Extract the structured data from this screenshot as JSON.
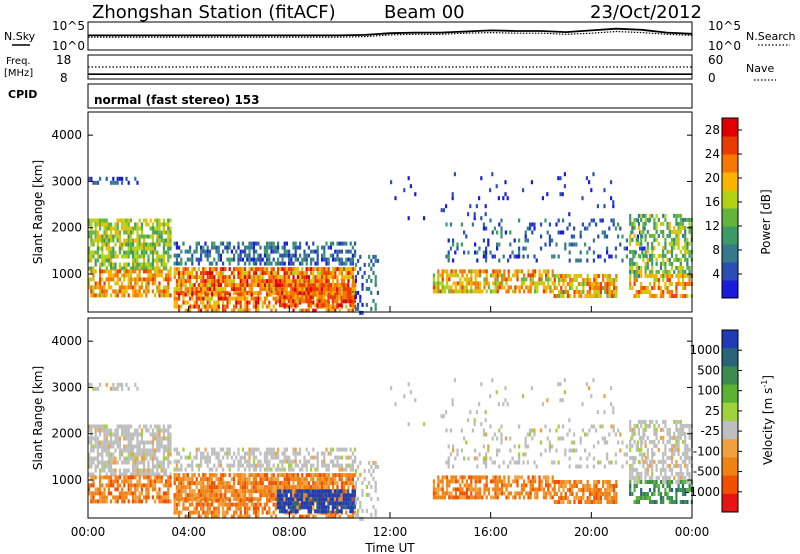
{
  "header": {
    "station": "Zhongshan Station (fitACF)",
    "beam": "Beam 00",
    "date": "23/Oct/2012"
  },
  "noise_panel": {
    "left_label": "N.Sky",
    "left_ticks": [
      "10^5",
      "10^0"
    ],
    "right_label": "N.Search",
    "right_ticks": [
      "10^5",
      "10^0"
    ]
  },
  "freq_panel": {
    "left_label_1": "Freq.",
    "left_label_2": "[MHz]",
    "left_ticks": [
      "18",
      "8"
    ],
    "right_label": "Nave",
    "right_ticks": [
      "60",
      "0"
    ]
  },
  "cpid": {
    "label": "CPID",
    "mode": "normal (fast stereo) 153"
  },
  "colors": {
    "power_scale": [
      "#1a1adc",
      "#2a4fb4",
      "#347a8c",
      "#3c9a64",
      "#64b43c",
      "#b4d214",
      "#fab400",
      "#f57800",
      "#eb3c00",
      "#e10000"
    ],
    "velocity_scale": [
      "#1e3cb4",
      "#2a6478",
      "#3c8c50",
      "#5ab432",
      "#a0d23c",
      "#bebebe",
      "#f0a03c",
      "#f08214",
      "#f05000",
      "#e61414"
    ]
  },
  "chart_data": [
    {
      "type": "line",
      "panel": "noise",
      "x_range_hours": [
        0,
        24
      ],
      "series": [
        {
          "x": [
            0,
            2,
            4,
            6,
            8,
            10,
            11,
            12,
            13,
            14,
            15,
            16,
            17,
            18,
            19,
            20,
            21,
            22,
            23,
            24
          ],
          "values": [
            2.6,
            2.6,
            2.6,
            2.6,
            2.6,
            2.6,
            2.7,
            3.0,
            3.1,
            3.1,
            3.3,
            3.5,
            3.4,
            3.4,
            3.2,
            3.5,
            3.8,
            3.6,
            3.1,
            2.9
          ]
        },
        {
          "x": [
            0,
            2,
            4,
            6,
            8,
            10,
            11,
            12,
            13,
            14,
            15,
            16,
            17,
            18,
            19,
            20,
            21,
            22,
            23,
            24
          ],
          "values": [
            2.3,
            2.3,
            2.3,
            2.3,
            2.3,
            2.3,
            2.4,
            2.7,
            2.8,
            2.8,
            3.0,
            3.1,
            3.0,
            3.0,
            2.8,
            3.0,
            3.3,
            3.1,
            2.8,
            2.6
          ]
        }
      ],
      "ylim": [
        0,
        5
      ]
    },
    {
      "type": "line",
      "panel": "frequency",
      "x_range_hours": [
        0,
        24
      ],
      "series": [
        {
          "x": [
            0,
            24
          ],
          "values": [
            10,
            10
          ]
        },
        {
          "x": [
            0,
            24
          ],
          "values": [
            13,
            13
          ]
        }
      ],
      "ylim": [
        8,
        18
      ]
    },
    {
      "type": "heatmap",
      "panel": "power",
      "xlabel": "",
      "ylabel": "Slant Range [km]",
      "x_ticks": [
        "00:00",
        "04:00",
        "08:00",
        "12:00",
        "16:00",
        "20:00",
        "00:00"
      ],
      "x_range_hours": [
        0,
        24
      ],
      "ylim": [
        180,
        4500
      ],
      "y_ticks": [
        1000,
        2000,
        3000,
        4000
      ],
      "colorbar_label": "Power [dB]",
      "colorbar_ticks": [
        "4",
        "8",
        "12",
        "16",
        "20",
        "24",
        "28"
      ],
      "colorbar_range": [
        0,
        30
      ]
    },
    {
      "type": "heatmap",
      "panel": "velocity",
      "xlabel": "Time UT",
      "ylabel": "Slant Range [km]",
      "x_ticks": [
        "00:00",
        "04:00",
        "08:00",
        "12:00",
        "16:00",
        "20:00",
        "00:00"
      ],
      "x_range_hours": [
        0,
        24
      ],
      "ylim": [
        180,
        4500
      ],
      "y_ticks": [
        1000,
        2000,
        3000,
        4000
      ],
      "colorbar_label": "Velocity [m s",
      "colorbar_label_sup": "-1",
      "colorbar_label_end": "]",
      "colorbar_ticks": [
        "1000",
        "500",
        "100",
        "25",
        "-25",
        "-100",
        "-500",
        "-1000"
      ]
    }
  ]
}
